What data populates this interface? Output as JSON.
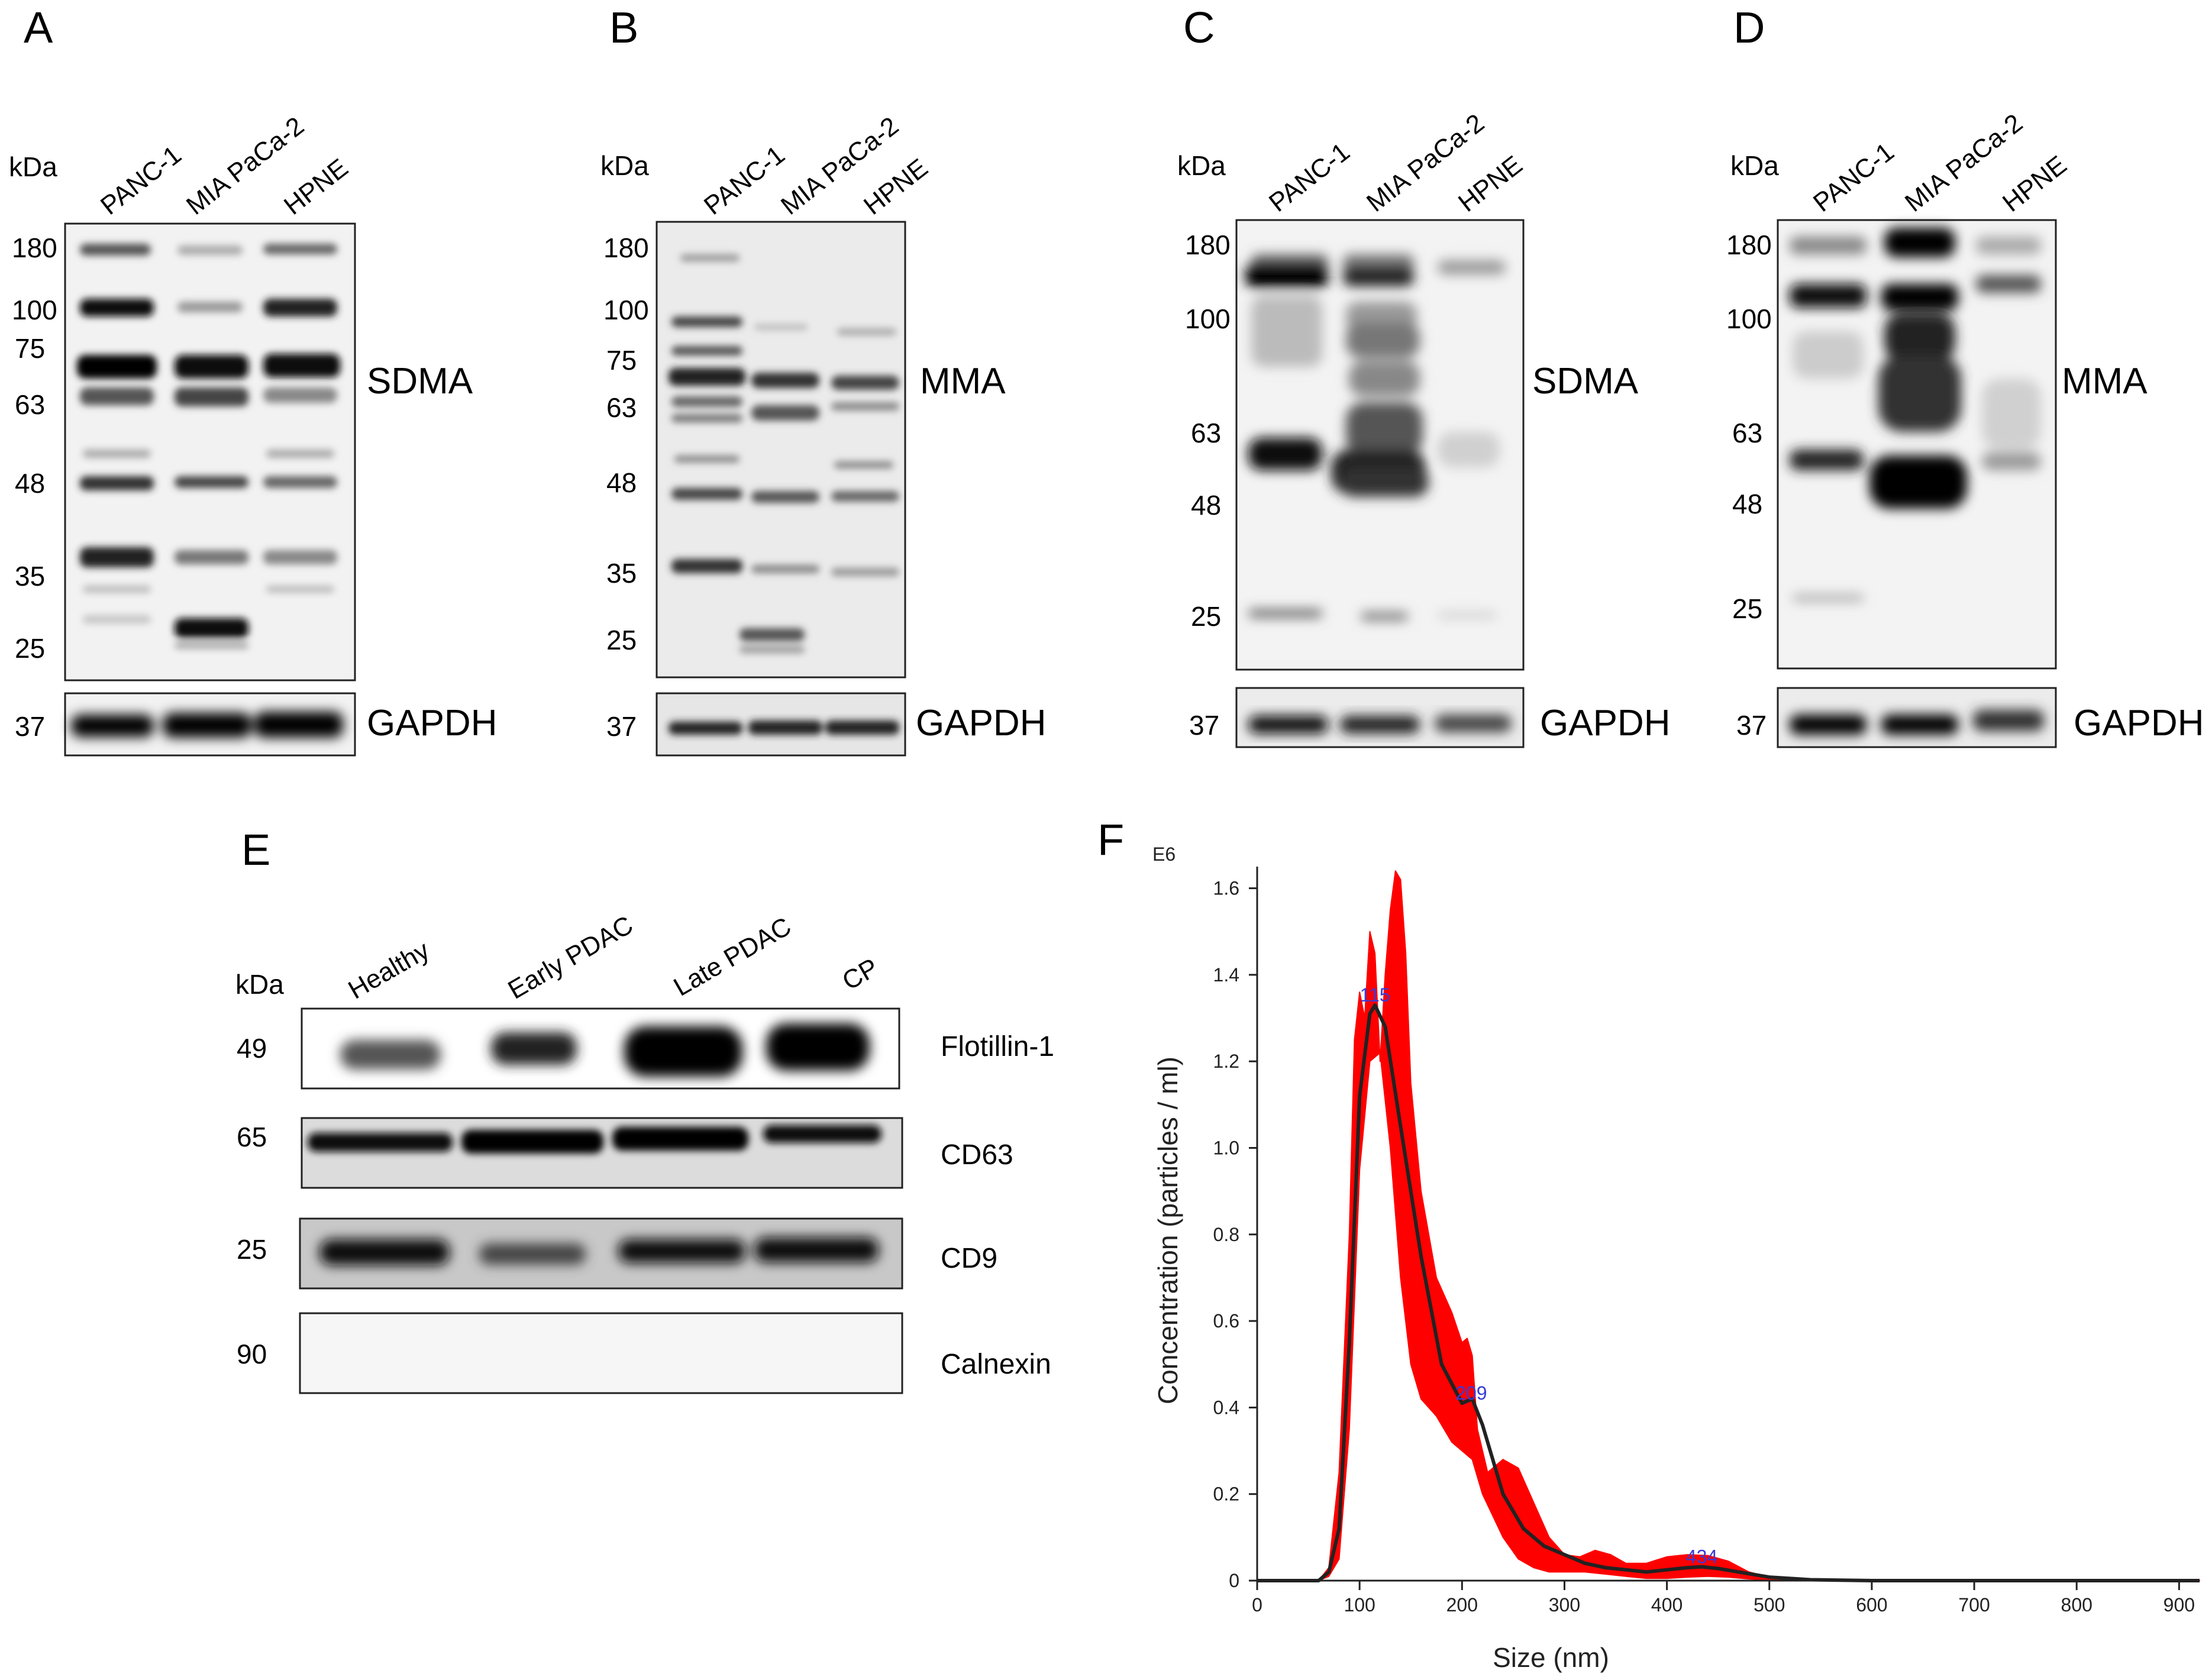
{
  "panels": {
    "A": {
      "label": "A",
      "kda": "kDa",
      "lanes": [
        "PANC-1",
        "MIA PaCa-2",
        "HPNE"
      ],
      "markers": [
        "180",
        "100",
        "75",
        "63",
        "48",
        "35",
        "25"
      ],
      "antibody": "SDMA",
      "control_marker": "37",
      "control": "GAPDH"
    },
    "B": {
      "label": "B",
      "kda": "kDa",
      "lanes": [
        "PANC-1",
        "MIA PaCa-2",
        "HPNE"
      ],
      "markers": [
        "180",
        "100",
        "75",
        "63",
        "48",
        "35",
        "25"
      ],
      "antibody": "MMA",
      "control_marker": "37",
      "control": "GAPDH"
    },
    "C": {
      "label": "C",
      "kda": "kDa",
      "lanes": [
        "PANC-1",
        "MIA PaCa-2",
        "HPNE"
      ],
      "markers": [
        "180",
        "100",
        "63",
        "48",
        "25"
      ],
      "antibody": "SDMA",
      "control_marker": "37",
      "control": "GAPDH"
    },
    "D": {
      "label": "D",
      "kda": "kDa",
      "lanes": [
        "PANC-1",
        "MIA PaCa-2",
        "HPNE"
      ],
      "markers": [
        "180",
        "100",
        "63",
        "48",
        "25"
      ],
      "antibody": "MMA",
      "control_marker": "37",
      "control": "GAPDH"
    },
    "E": {
      "label": "E",
      "kda": "kDa",
      "lanes": [
        "Healthy",
        "Early PDAC",
        "Late PDAC",
        "CP"
      ],
      "rows": [
        {
          "marker": "49",
          "name": "Flotillin-1"
        },
        {
          "marker": "65",
          "name": "CD63"
        },
        {
          "marker": "25",
          "name": "CD9"
        },
        {
          "marker": "90",
          "name": "Calnexin"
        }
      ]
    },
    "F": {
      "label": "F"
    }
  },
  "chart_data": {
    "type": "line",
    "xlabel": "Size (nm)",
    "ylabel": "Concentration (particles / ml)",
    "y_multiplier_label": "E6",
    "xlim": [
      0,
      920
    ],
    "ylim": [
      0,
      1.65
    ],
    "xticks": [
      0,
      100,
      200,
      300,
      400,
      500,
      600,
      700,
      800,
      900
    ],
    "yticks": [
      0,
      0.2,
      0.4,
      0.6,
      0.8,
      1.0,
      1.2,
      1.4,
      1.6
    ],
    "ytick_labels": [
      "0",
      "0.2",
      "0.4",
      "0.6",
      "0.8",
      "1.0",
      "1.2",
      "1.4",
      "1.6"
    ],
    "series": [
      {
        "role": "mean",
        "color": "#222222",
        "x": [
          0,
          60,
          70,
          80,
          90,
          100,
          110,
          115,
          125,
          140,
          160,
          180,
          200,
          210,
          220,
          240,
          260,
          280,
          300,
          320,
          340,
          360,
          380,
          400,
          420,
          434,
          450,
          470,
          500,
          540,
          600,
          920
        ],
        "y": [
          0,
          0.0,
          0.02,
          0.12,
          0.55,
          1.12,
          1.31,
          1.33,
          1.28,
          1.05,
          0.75,
          0.5,
          0.41,
          0.42,
          0.36,
          0.2,
          0.12,
          0.08,
          0.06,
          0.04,
          0.03,
          0.025,
          0.02,
          0.025,
          0.03,
          0.032,
          0.028,
          0.02,
          0.008,
          0.002,
          0.0,
          0.0
        ]
      },
      {
        "role": "upper",
        "color": "#ff0000",
        "x": [
          0,
          60,
          70,
          80,
          90,
          95,
          100,
          105,
          110,
          115,
          120,
          125,
          130,
          135,
          140,
          145,
          150,
          160,
          175,
          190,
          200,
          205,
          210,
          215,
          225,
          240,
          255,
          270,
          285,
          300,
          315,
          330,
          345,
          360,
          380,
          400,
          420,
          440,
          460,
          480,
          500,
          540,
          600,
          920
        ],
        "y": [
          0,
          0.0,
          0.03,
          0.25,
          0.8,
          1.25,
          1.36,
          1.3,
          1.5,
          1.45,
          1.2,
          1.4,
          1.55,
          1.64,
          1.62,
          1.45,
          1.15,
          0.9,
          0.7,
          0.62,
          0.55,
          0.56,
          0.52,
          0.35,
          0.25,
          0.28,
          0.26,
          0.18,
          0.1,
          0.06,
          0.055,
          0.07,
          0.06,
          0.04,
          0.04,
          0.055,
          0.06,
          0.058,
          0.045,
          0.02,
          0.008,
          0.002,
          0.0,
          0.0
        ]
      },
      {
        "role": "lower",
        "color": "#ff0000",
        "x": [
          0,
          60,
          70,
          80,
          90,
          100,
          110,
          120,
          130,
          140,
          150,
          160,
          175,
          190,
          200,
          210,
          220,
          240,
          255,
          270,
          285,
          300,
          320,
          340,
          360,
          380,
          400,
          420,
          440,
          460,
          480,
          500,
          540,
          600,
          920
        ],
        "y": [
          0,
          0.0,
          0.01,
          0.05,
          0.35,
          0.95,
          1.2,
          1.22,
          1.0,
          0.7,
          0.5,
          0.42,
          0.38,
          0.32,
          0.3,
          0.28,
          0.2,
          0.1,
          0.05,
          0.03,
          0.02,
          0.02,
          0.02,
          0.015,
          0.01,
          0.005,
          0.005,
          0.008,
          0.01,
          0.008,
          0.004,
          0.002,
          0.0,
          0.0,
          0.0
        ]
      }
    ],
    "peak_labels": [
      {
        "x": 115,
        "y": 1.33,
        "text": "115"
      },
      {
        "x": 209,
        "y": 0.41,
        "text": "209"
      },
      {
        "x": 434,
        "y": 0.032,
        "text": "434"
      }
    ]
  }
}
